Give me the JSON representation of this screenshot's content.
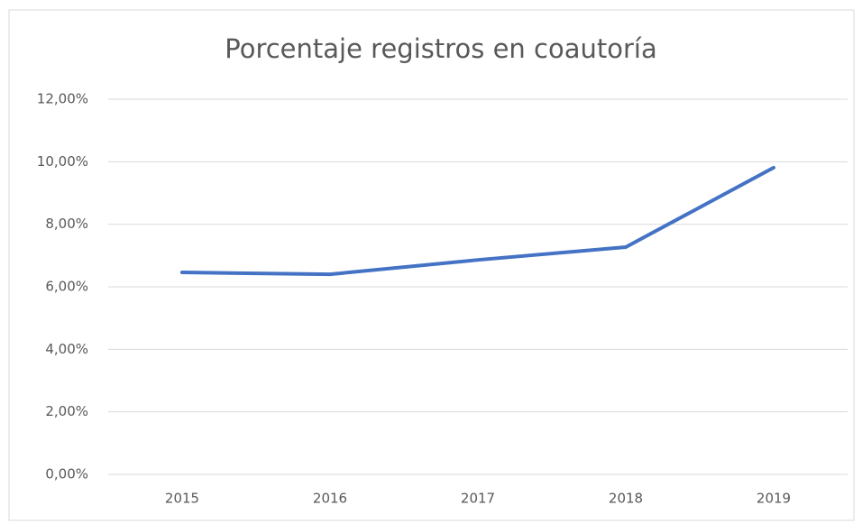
{
  "chart_data": {
    "type": "line",
    "title": "Porcentaje registros en coautoría",
    "categories": [
      "2015",
      "2016",
      "2017",
      "2018",
      "2019"
    ],
    "series": [
      {
        "name": "Porcentaje registros en coautoría",
        "color": "#4472c4",
        "values": [
          6.46,
          6.4,
          6.86,
          7.27,
          9.81
        ]
      }
    ],
    "ylim": [
      0,
      12
    ],
    "yticks": [
      {
        "value": 0,
        "label": "0,00%"
      },
      {
        "value": 2,
        "label": "2,00%"
      },
      {
        "value": 4,
        "label": "4,00%"
      },
      {
        "value": 6,
        "label": "6,00%"
      },
      {
        "value": 8,
        "label": "8,00%"
      },
      {
        "value": 10,
        "label": "10,00%"
      },
      {
        "value": 12,
        "label": "12,00%"
      }
    ],
    "grid": true
  }
}
